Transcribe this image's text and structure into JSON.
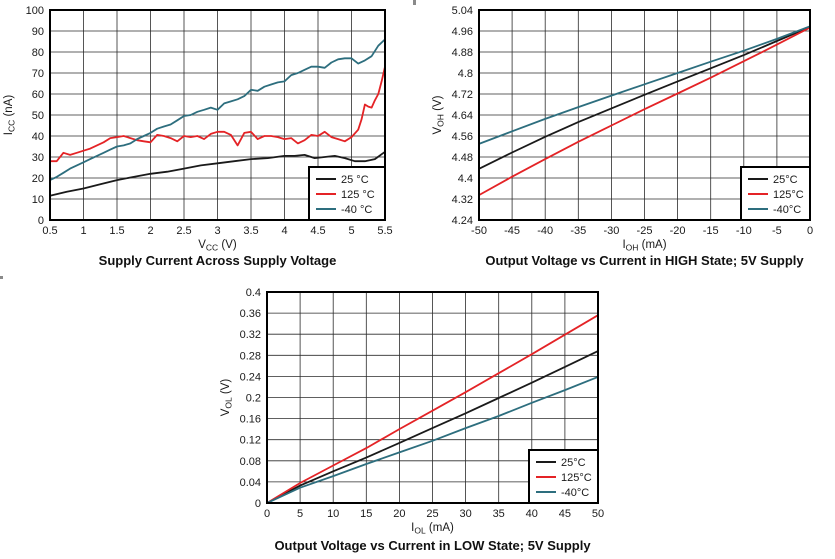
{
  "page": {
    "background": "#ffffff",
    "text_color": "#1a1a1a",
    "series_colors": {
      "black": "#1a1a1a",
      "red": "#e42326",
      "teal": "#2d6e7e"
    }
  },
  "chart_data": [
    {
      "type": "line",
      "title": "Supply Current Across Supply Voltage",
      "xlabel": "VCC (V)",
      "ylabel": "ICC (nA)",
      "xlabel_parts": {
        "pre": "V",
        "sub": "CC",
        "post": " (V)"
      },
      "ylabel_parts": {
        "pre": "I",
        "sub": "CC",
        "post": " (nA)"
      },
      "xlim": [
        0.5,
        5.5
      ],
      "ylim": [
        0,
        100
      ],
      "xticks": [
        "0.5",
        "1",
        "1.5",
        "2",
        "2.5",
        "3",
        "3.5",
        "4",
        "4.5",
        "5",
        "5.5"
      ],
      "yticks": [
        "0",
        "10",
        "20",
        "30",
        "40",
        "50",
        "60",
        "70",
        "80",
        "90",
        "100"
      ],
      "grid": true,
      "legend_position": "bottom-right",
      "series": [
        {
          "name": "25 °C",
          "color": "#1a1a1a",
          "x": [
            0.5,
            0.75,
            1,
            1.25,
            1.5,
            1.75,
            2,
            2.25,
            2.5,
            2.75,
            3,
            3.25,
            3.5,
            3.75,
            4,
            4.15,
            4.3,
            4.45,
            4.6,
            4.75,
            4.9,
            5.05,
            5.2,
            5.35,
            5.5
          ],
          "y": [
            11.5,
            13.5,
            15,
            17,
            19,
            20.5,
            22,
            23,
            24.5,
            26,
            27,
            28,
            29,
            29.5,
            30.5,
            30.5,
            31,
            29.5,
            30,
            30.5,
            29.5,
            28,
            28,
            29,
            32.5
          ]
        },
        {
          "name": "125 °C",
          "color": "#e42326",
          "x": [
            0.5,
            0.6,
            0.7,
            0.8,
            0.9,
            1,
            1.1,
            1.2,
            1.3,
            1.4,
            1.5,
            1.6,
            1.7,
            1.8,
            1.9,
            2,
            2.1,
            2.2,
            2.3,
            2.4,
            2.5,
            2.6,
            2.7,
            2.8,
            2.9,
            3,
            3.1,
            3.2,
            3.3,
            3.4,
            3.5,
            3.6,
            3.7,
            3.8,
            3.9,
            4,
            4.1,
            4.2,
            4.3,
            4.4,
            4.5,
            4.6,
            4.7,
            4.8,
            4.9,
            5,
            5.1,
            5.15,
            5.2,
            5.25,
            5.3,
            5.35,
            5.4,
            5.45,
            5.5
          ],
          "y": [
            28,
            28,
            32,
            31,
            32,
            33,
            34,
            35.5,
            37,
            39,
            39.5,
            40,
            39,
            38,
            37.5,
            37,
            40.5,
            40,
            39,
            37.5,
            40,
            39.5,
            40,
            38.5,
            41,
            42,
            42,
            40.5,
            35.5,
            41.5,
            42,
            38.5,
            40,
            40,
            39.5,
            38.5,
            39,
            36.5,
            38,
            40.5,
            40,
            42,
            39.5,
            38.5,
            37.5,
            39.5,
            43,
            48,
            55,
            54,
            53.5,
            57,
            60,
            66,
            73
          ]
        },
        {
          "name": "-40 °C",
          "color": "#2d6e7e",
          "x": [
            0.5,
            0.6,
            0.7,
            0.8,
            0.9,
            1,
            1.1,
            1.2,
            1.3,
            1.4,
            1.5,
            1.6,
            1.7,
            1.8,
            1.9,
            2,
            2.1,
            2.2,
            2.3,
            2.4,
            2.5,
            2.6,
            2.7,
            2.8,
            2.9,
            3,
            3.1,
            3.2,
            3.3,
            3.4,
            3.5,
            3.6,
            3.7,
            3.8,
            3.9,
            4,
            4.1,
            4.2,
            4.3,
            4.4,
            4.5,
            4.6,
            4.7,
            4.8,
            4.9,
            5,
            5.1,
            5.2,
            5.3,
            5.4,
            5.5
          ],
          "y": [
            19,
            20.5,
            22.5,
            24.5,
            26,
            27.5,
            29,
            30.5,
            32,
            33.5,
            35,
            35.5,
            36.5,
            38.5,
            40,
            41.5,
            43.5,
            44.5,
            45.5,
            47.5,
            49.5,
            50,
            51.5,
            52.5,
            53.5,
            52.5,
            55.5,
            56.5,
            57.5,
            59,
            62,
            61.5,
            63.5,
            64.5,
            65.5,
            66,
            69,
            70,
            71.5,
            73,
            73,
            72.5,
            75,
            76.5,
            77,
            77,
            74.5,
            76,
            78,
            83,
            86
          ]
        }
      ]
    },
    {
      "type": "line",
      "title": "Output Voltage vs Current in HIGH State; 5V Supply",
      "xlabel": "IOH (mA)",
      "ylabel": "VOH (V)",
      "xlabel_parts": {
        "pre": "I",
        "sub": "OH",
        "post": " (mA)"
      },
      "ylabel_parts": {
        "pre": "V",
        "sub": "OH",
        "post": " (V)"
      },
      "xlim": [
        -50,
        0
      ],
      "ylim": [
        4.24,
        5.04
      ],
      "xticks": [
        "-50",
        "-45",
        "-40",
        "-35",
        "-30",
        "-25",
        "-20",
        "-15",
        "-10",
        "-5",
        "0"
      ],
      "yticks": [
        "4.24",
        "4.32",
        "4.4",
        "4.48",
        "4.56",
        "4.64",
        "4.72",
        "4.8",
        "4.88",
        "4.96",
        "5.04"
      ],
      "grid": true,
      "legend_position": "bottom-right",
      "series": [
        {
          "name": "25°C",
          "color": "#1a1a1a",
          "x": [
            -50,
            -45,
            -40,
            -35,
            -30,
            -25,
            -20,
            -15,
            -10,
            -5,
            0
          ],
          "y": [
            4.435,
            4.497,
            4.557,
            4.613,
            4.665,
            4.717,
            4.768,
            4.818,
            4.868,
            4.922,
            4.975
          ]
        },
        {
          "name": "125°C",
          "color": "#e42326",
          "x": [
            -50,
            -45,
            -40,
            -35,
            -30,
            -25,
            -20,
            -15,
            -10,
            -5,
            0
          ],
          "y": [
            4.335,
            4.405,
            4.472,
            4.538,
            4.6,
            4.662,
            4.722,
            4.782,
            4.845,
            4.908,
            4.973
          ]
        },
        {
          "name": "-40°C",
          "color": "#2d6e7e",
          "x": [
            -50,
            -45,
            -40,
            -35,
            -30,
            -25,
            -20,
            -15,
            -10,
            -5,
            0
          ],
          "y": [
            4.53,
            4.578,
            4.625,
            4.67,
            4.714,
            4.757,
            4.8,
            4.843,
            4.885,
            4.93,
            4.978
          ]
        }
      ]
    },
    {
      "type": "line",
      "title": "Output Voltage vs Current in LOW State; 5V Supply",
      "xlabel": "IOL (mA)",
      "ylabel": "VOL (V)",
      "xlabel_parts": {
        "pre": "I",
        "sub": "OL",
        "post": " (mA)"
      },
      "ylabel_parts": {
        "pre": "V",
        "sub": "OL",
        "post": " (V)"
      },
      "xlim": [
        0,
        50
      ],
      "ylim": [
        0,
        0.4
      ],
      "xticks": [
        "0",
        "5",
        "10",
        "15",
        "20",
        "25",
        "30",
        "35",
        "40",
        "45",
        "50"
      ],
      "yticks": [
        "0",
        "0.04",
        "0.08",
        "0.12",
        "0.16",
        "0.2",
        "0.24",
        "0.28",
        "0.32",
        "0.36",
        "0.4"
      ],
      "grid": true,
      "legend_position": "bottom-right",
      "series": [
        {
          "name": "25°C",
          "color": "#1a1a1a",
          "x": [
            0,
            5,
            10,
            15,
            20,
            25,
            30,
            35,
            40,
            45,
            50
          ],
          "y": [
            0,
            0.033,
            0.06,
            0.086,
            0.114,
            0.142,
            0.17,
            0.199,
            0.228,
            0.258,
            0.288
          ]
        },
        {
          "name": "125°C",
          "color": "#e42326",
          "x": [
            0,
            5,
            10,
            15,
            20,
            25,
            30,
            35,
            40,
            45,
            50
          ],
          "y": [
            0,
            0.038,
            0.071,
            0.104,
            0.14,
            0.175,
            0.21,
            0.246,
            0.282,
            0.319,
            0.356
          ]
        },
        {
          "name": "-40°C",
          "color": "#2d6e7e",
          "x": [
            0,
            5,
            10,
            15,
            20,
            25,
            30,
            35,
            40,
            45,
            50
          ],
          "y": [
            0,
            0.029,
            0.051,
            0.074,
            0.096,
            0.118,
            0.142,
            0.165,
            0.19,
            0.214,
            0.239
          ]
        }
      ]
    }
  ]
}
